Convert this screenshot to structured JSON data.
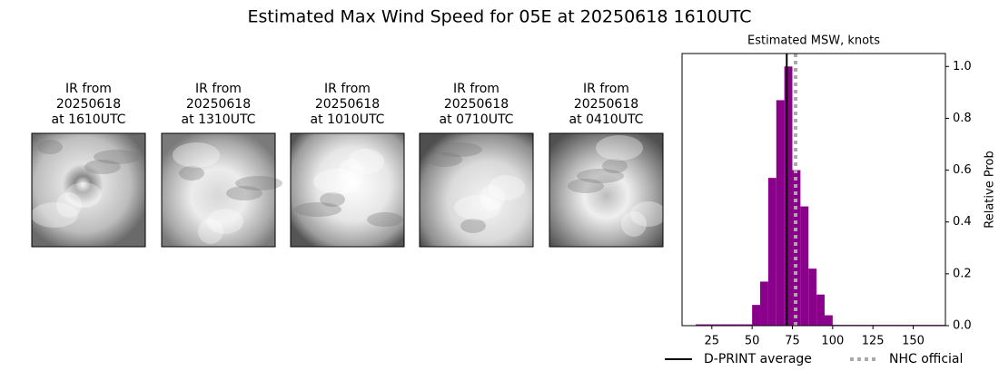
{
  "title": "Estimated Max Wind Speed for 05E at 20250618 1610UTC",
  "panels": [
    {
      "lines": [
        "IR from",
        "20250618",
        "at 1610UTC"
      ]
    },
    {
      "lines": [
        "IR from",
        "20250618",
        "at 1310UTC"
      ]
    },
    {
      "lines": [
        "IR from",
        "20250618",
        "at 1010UTC"
      ]
    },
    {
      "lines": [
        "IR from",
        "20250618",
        "at 0710UTC"
      ]
    },
    {
      "lines": [
        "IR from",
        "20250618",
        "at 0410UTC"
      ]
    }
  ],
  "chart_data": {
    "type": "histogram",
    "title": "Estimated MSW, knots",
    "y_label": "Relative Prob",
    "color": "#8b008b",
    "bins": [
      15,
      20,
      25,
      30,
      35,
      40,
      45,
      50,
      55,
      60,
      65,
      70,
      75,
      80,
      85,
      90,
      95,
      100,
      105,
      110,
      115,
      120,
      125,
      130,
      135,
      140,
      145,
      150,
      155,
      160,
      165,
      170
    ],
    "values": [
      0.005,
      0.005,
      0.005,
      0.005,
      0.005,
      0.005,
      0.005,
      0.08,
      0.17,
      0.57,
      0.87,
      1.0,
      0.6,
      0.46,
      0.22,
      0.12,
      0.04,
      0.003,
      0.003,
      0.003,
      0.003,
      0.003,
      0.003,
      0.003,
      0.003,
      0.003,
      0.003,
      0.003,
      0.003,
      0.003,
      0.003
    ],
    "xlim": [
      6.5,
      170
    ],
    "ylim": [
      0,
      1.05
    ],
    "xticks": [
      25,
      50,
      75,
      100,
      125,
      150
    ],
    "yticks": [
      {
        "value": 0,
        "label": "0.0"
      },
      0.2,
      0.4,
      0.6,
      0.8,
      {
        "value": 1,
        "label": "1.0"
      }
    ],
    "lines": [
      {
        "name": "D-PRINT average",
        "value": 71.5,
        "color": "#000000",
        "style": "solid"
      },
      {
        "name": "NHC official",
        "value": 77,
        "color": "#aaaaaa",
        "style": "dotted"
      }
    ]
  }
}
